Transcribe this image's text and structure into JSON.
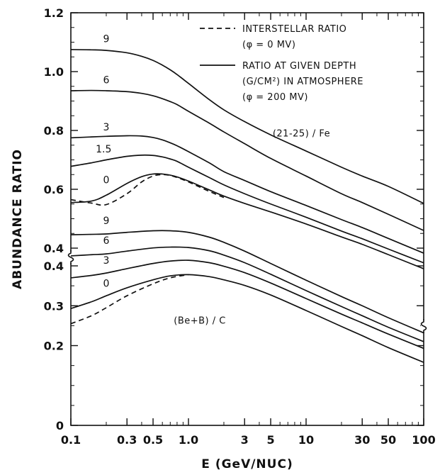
{
  "chart_data": {
    "type": "line",
    "xlabel": "E (GeV/NUC)",
    "ylabel": "ABUNDANCE RATIO",
    "x_scale": "log",
    "xlim": [
      0.1,
      100
    ],
    "x_ticks": [
      {
        "value": 0.1,
        "label": "0.1"
      },
      {
        "value": 0.3,
        "label": "0.3"
      },
      {
        "value": 0.5,
        "label": "0.5"
      },
      {
        "value": 1,
        "label": "1.0"
      },
      {
        "value": 3,
        "label": "3"
      },
      {
        "value": 5,
        "label": "5"
      },
      {
        "value": 10,
        "label": "10"
      },
      {
        "value": 30,
        "label": "30"
      },
      {
        "value": 50,
        "label": "50"
      },
      {
        "value": 100,
        "label": "100"
      }
    ],
    "y_axis_broken": true,
    "panels": [
      {
        "name": "(21-25) / Fe",
        "ylim": [
          0.4,
          1.2
        ],
        "y_ticks": [
          {
            "value": 0.4,
            "label": "0.4"
          },
          {
            "value": 0.6,
            "label": "0.6"
          },
          {
            "value": 0.8,
            "label": "0.8"
          },
          {
            "value": 1.0,
            "label": "1.0"
          },
          {
            "value": 1.2,
            "label": "1.2"
          }
        ],
        "x": [
          0.1,
          0.15,
          0.2,
          0.3,
          0.4,
          0.5,
          0.6,
          0.7,
          0.8,
          1.0,
          1.5,
          2,
          3,
          5,
          10,
          20,
          30,
          50,
          100
        ],
        "series": [
          {
            "name": "9",
            "style": "solid",
            "values": [
              1.075,
              1.074,
              1.072,
              1.064,
              1.052,
              1.038,
              1.022,
              1.006,
              0.99,
              0.96,
              0.905,
              0.87,
              0.83,
              0.785,
              0.73,
              0.675,
              0.645,
              0.61,
              0.552
            ]
          },
          {
            "name": "6",
            "style": "solid",
            "values": [
              0.935,
              0.936,
              0.935,
              0.932,
              0.926,
              0.918,
              0.908,
              0.898,
              0.888,
              0.865,
              0.825,
              0.795,
              0.755,
              0.705,
              0.645,
              0.585,
              0.555,
              0.515,
              0.46
            ]
          },
          {
            "name": "3",
            "style": "solid",
            "values": [
              0.775,
              0.778,
              0.78,
              0.782,
              0.781,
              0.776,
              0.768,
              0.758,
              0.748,
              0.728,
              0.69,
              0.66,
              0.63,
              0.592,
              0.545,
              0.497,
              0.47,
              0.433,
              0.383
            ]
          },
          {
            "name": "1.5",
            "style": "solid",
            "values": [
              0.678,
              0.69,
              0.7,
              0.712,
              0.716,
              0.715,
              0.71,
              0.703,
              0.695,
              0.675,
              0.64,
              0.615,
              0.585,
              0.55,
              0.505,
              0.458,
              0.432,
              0.397,
              0.35
            ]
          },
          {
            "name": "0",
            "style": "solid",
            "values": [
              0.555,
              0.56,
              0.58,
              0.62,
              0.643,
              0.652,
              0.652,
              0.648,
              0.642,
              0.628,
              0.598,
              0.577,
              0.552,
              0.523,
              0.482,
              0.438,
              0.413,
              0.378,
              0.33
            ]
          },
          {
            "name": "INTERSTELLAR RATIO",
            "style": "dashed",
            "values": [
              0.565,
              0.553,
              0.548,
              0.585,
              0.625,
              0.645,
              0.65,
              0.647,
              0.64,
              0.625,
              0.593,
              0.572,
              null,
              null,
              null,
              null,
              null,
              null,
              null
            ]
          }
        ],
        "curve_labels": [
          {
            "text": "9",
            "x": 0.2,
            "y": 1.1
          },
          {
            "text": "6",
            "x": 0.2,
            "y": 0.96
          },
          {
            "text": "3",
            "x": 0.2,
            "y": 0.8
          },
          {
            "text": "1.5",
            "x": 0.19,
            "y": 0.725
          },
          {
            "text": "0",
            "x": 0.2,
            "y": 0.62
          }
        ],
        "label_pos": {
          "x": 5.2,
          "y": 0.78
        }
      },
      {
        "name": "(Be+B) / C",
        "ylim": [
          0,
          0.4
        ],
        "y_ticks": [
          {
            "value": 0,
            "label": "0"
          },
          {
            "value": 0.2,
            "label": "0.2"
          },
          {
            "value": 0.3,
            "label": "0.3"
          },
          {
            "value": 0.4,
            "label": "0.4"
          }
        ],
        "x": [
          0.1,
          0.15,
          0.2,
          0.3,
          0.5,
          0.7,
          1.0,
          1.5,
          2,
          3,
          5,
          10,
          20,
          30,
          50,
          100
        ],
        "series": [
          {
            "name": "9",
            "style": "solid",
            "values": [
              0.478,
              0.479,
              0.48,
              0.484,
              0.488,
              0.488,
              0.484,
              0.472,
              0.459,
              0.437,
              0.406,
              0.364,
              0.323,
              0.3,
              0.27,
              0.232
            ]
          },
          {
            "name": "6",
            "style": "solid",
            "values": [
              0.425,
              0.428,
              0.43,
              0.437,
              0.445,
              0.447,
              0.446,
              0.438,
              0.427,
              0.408,
              0.379,
              0.338,
              0.298,
              0.275,
              0.246,
              0.21
            ]
          },
          {
            "name": "3",
            "style": "solid",
            "values": [
              0.37,
              0.376,
              0.382,
              0.393,
              0.406,
              0.412,
              0.414,
              0.408,
              0.399,
              0.383,
              0.357,
              0.318,
              0.279,
              0.257,
              0.229,
              0.193
            ]
          },
          {
            "name": "0",
            "style": "solid",
            "values": [
              0.293,
              0.31,
              0.325,
              0.345,
              0.365,
              0.375,
              0.378,
              0.373,
              0.365,
              0.351,
              0.327,
              0.288,
              0.248,
              0.225,
              0.195,
              0.158
            ]
          },
          {
            "name": "INTERSTELLAR RATIO",
            "style": "dashed",
            "values": [
              0.255,
              0.275,
              0.295,
              0.325,
              0.355,
              0.37,
              0.378,
              null,
              null,
              null,
              null,
              null,
              null,
              null,
              null,
              null
            ]
          }
        ],
        "curve_labels": [
          {
            "text": "9",
            "x": 0.2,
            "y": 0.505
          },
          {
            "text": "6",
            "x": 0.2,
            "y": 0.455
          },
          {
            "text": "3",
            "x": 0.2,
            "y": 0.405
          },
          {
            "text": "0",
            "x": 0.2,
            "y": 0.348
          }
        ],
        "label_pos": {
          "x": 0.75,
          "y": 0.255
        }
      }
    ],
    "legend": {
      "placement": "top-right",
      "entries": [
        {
          "style": "dashed",
          "lines": [
            "INTERSTELLAR RATIO",
            "(φ = 0 MV)"
          ]
        },
        {
          "style": "solid",
          "lines": [
            "RATIO AT GIVEN DEPTH",
            "(G/CM²) IN ATMOSPHERE",
            "(φ = 200 MV)"
          ]
        }
      ]
    }
  }
}
